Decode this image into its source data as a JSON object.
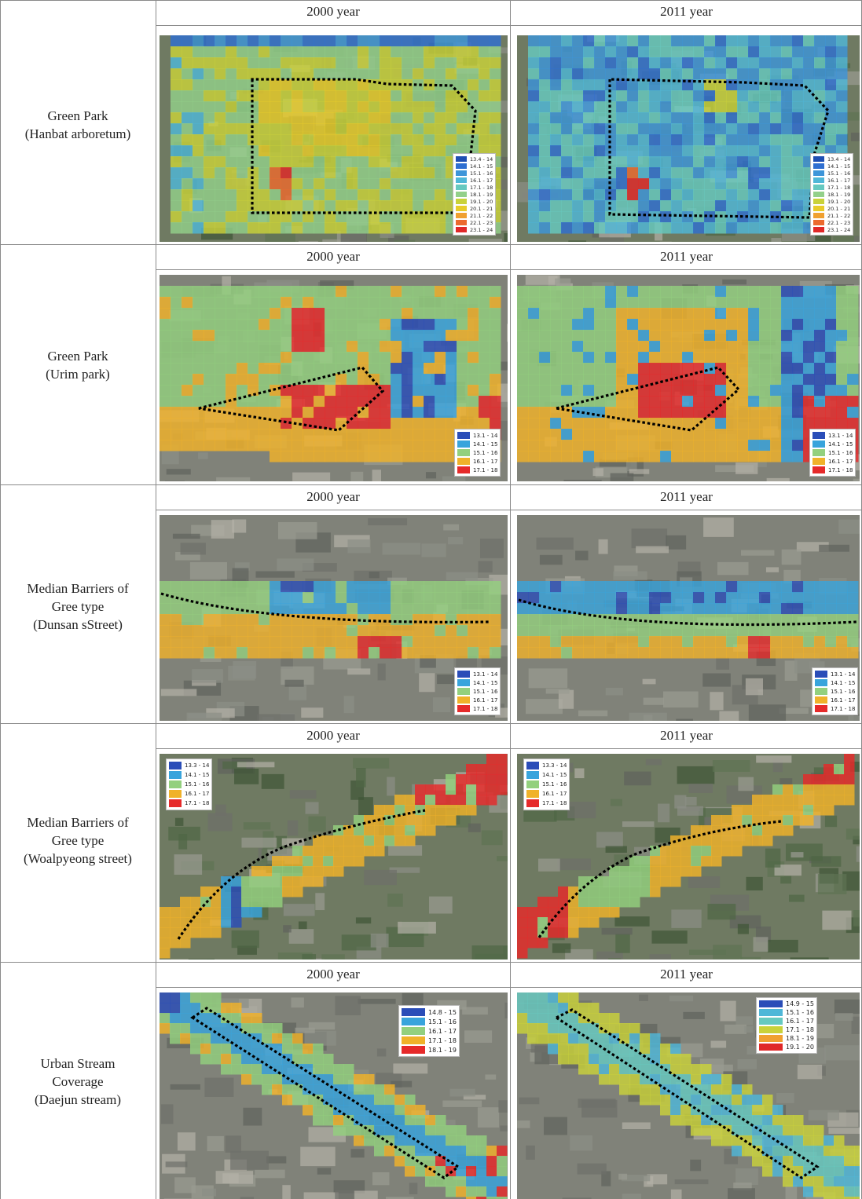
{
  "header": {
    "col_2000": "2000 year",
    "col_2011": "2011 year"
  },
  "rows": [
    {
      "label": [
        "Green Park",
        "(Hanbat arboretum)"
      ],
      "header_2000": "2000 year",
      "header_2011": "2011 year"
    },
    {
      "label": [
        "Green Park",
        "(Urim park)"
      ],
      "header_2000": "2000 year",
      "header_2011": "2011 year"
    },
    {
      "label": [
        "Median Barriers of",
        "Gree type",
        "(Dunsan sStreet)"
      ],
      "header_2000": "2000 year",
      "header_2011": "2011 year"
    },
    {
      "label": [
        "Median Barriers of",
        "Gree type",
        "(Woalpyeong street)"
      ],
      "header_2000": "2000 year",
      "header_2011": "2011 year"
    },
    {
      "label": [
        "Urban Stream",
        "Coverage",
        "(Daejun stream)"
      ],
      "header_2000": "2000 year",
      "header_2011": "2011 year"
    }
  ],
  "legends": {
    "hanbat": [
      "13.4 - 14",
      "14.1 - 15",
      "15.1 - 16",
      "16.1 - 17",
      "17.1 - 18",
      "18.1 - 19",
      "19.1 - 20",
      "20.1 - 21",
      "21.1 - 22",
      "22.1 - 23",
      "23.1 - 24"
    ],
    "five": [
      "13.1 - 14",
      "14.1 - 15",
      "15.1 - 16",
      "16.1 - 17",
      "17.1 - 18"
    ],
    "woal": [
      "13.3 - 14",
      "14.1 - 15",
      "15.1 - 16",
      "16.1 - 17",
      "17.1 - 18"
    ],
    "daejun_2000": [
      "14.8 - 15",
      "15.1 - 16",
      "16.1 - 17",
      "17.1 - 18",
      "18.1 - 19"
    ],
    "daejun_2011": [
      "14.9 - 15",
      "15.1 - 16",
      "16.1 - 17",
      "17.1 - 18",
      "18.1 - 19",
      "19.1 - 20"
    ]
  },
  "colors": {
    "hanbat": [
      "#1f4fb3",
      "#2f6fd1",
      "#3d95d9",
      "#4fb7d8",
      "#66c9c0",
      "#93d08a",
      "#c9d23a",
      "#e8cc2a",
      "#f0a030",
      "#ec6a2e",
      "#e02828"
    ],
    "five": [
      "#2a4db8",
      "#38a4dc",
      "#93d07e",
      "#f0b22a",
      "#e62a2a"
    ],
    "daejun_2000": [
      "#2a4db8",
      "#38a4dc",
      "#93d07e",
      "#f0b22a",
      "#e62a2a"
    ],
    "daejun_2011": [
      "#2a4db8",
      "#4fb7d8",
      "#66c9c0",
      "#c9d23a",
      "#f0a030",
      "#e02828"
    ]
  },
  "scene": {
    "dotted_boundary_color": "#000000",
    "aerial_base_color": "#7d7f78"
  }
}
